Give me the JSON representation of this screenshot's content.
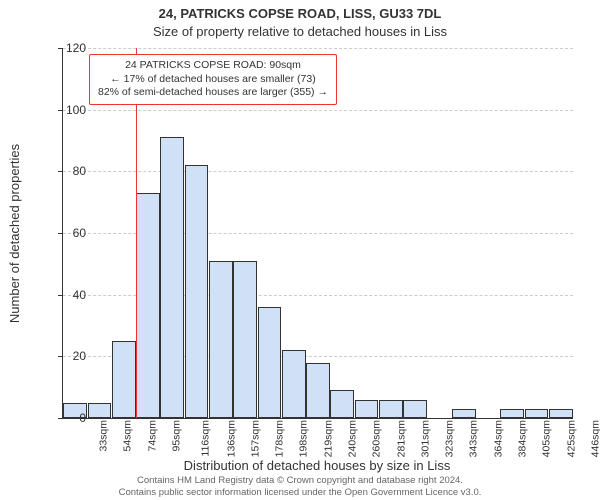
{
  "title_main": "24, PATRICKS COPSE ROAD, LISS, GU33 7DL",
  "title_sub": "Size of property relative to detached houses in Liss",
  "ylabel": "Number of detached properties",
  "xlabel": "Distribution of detached houses by size in Liss",
  "chart": {
    "type": "histogram",
    "ylim": [
      0,
      120
    ],
    "yticks": [
      0,
      20,
      40,
      60,
      80,
      100,
      120
    ],
    "xtick_labels": [
      "33sqm",
      "54sqm",
      "74sqm",
      "95sqm",
      "116sqm",
      "136sqm",
      "157sqm",
      "178sqm",
      "198sqm",
      "219sqm",
      "240sqm",
      "260sqm",
      "281sqm",
      "301sqm",
      "323sqm",
      "343sqm",
      "364sqm",
      "384sqm",
      "405sqm",
      "425sqm",
      "446sqm"
    ],
    "values": [
      5,
      5,
      25,
      73,
      91,
      82,
      51,
      51,
      36,
      22,
      18,
      9,
      6,
      6,
      6,
      0,
      3,
      0,
      3,
      3,
      3
    ],
    "bar_color": "#cfe0f7",
    "bar_border": "#333333",
    "grid_color": "#cccccc",
    "refline_index": 3,
    "refline_color": "#ee3333"
  },
  "annotation": {
    "line1": "24 PATRICKS COPSE ROAD: 90sqm",
    "line2": "← 17% of detached houses are smaller (73)",
    "line3": "82% of semi-detached houses are larger (355) →",
    "border_color": "#ee3333"
  },
  "footer_line1": "Contains HM Land Registry data © Crown copyright and database right 2024.",
  "footer_line2": "Contains public sector information licensed under the Open Government Licence v3.0."
}
